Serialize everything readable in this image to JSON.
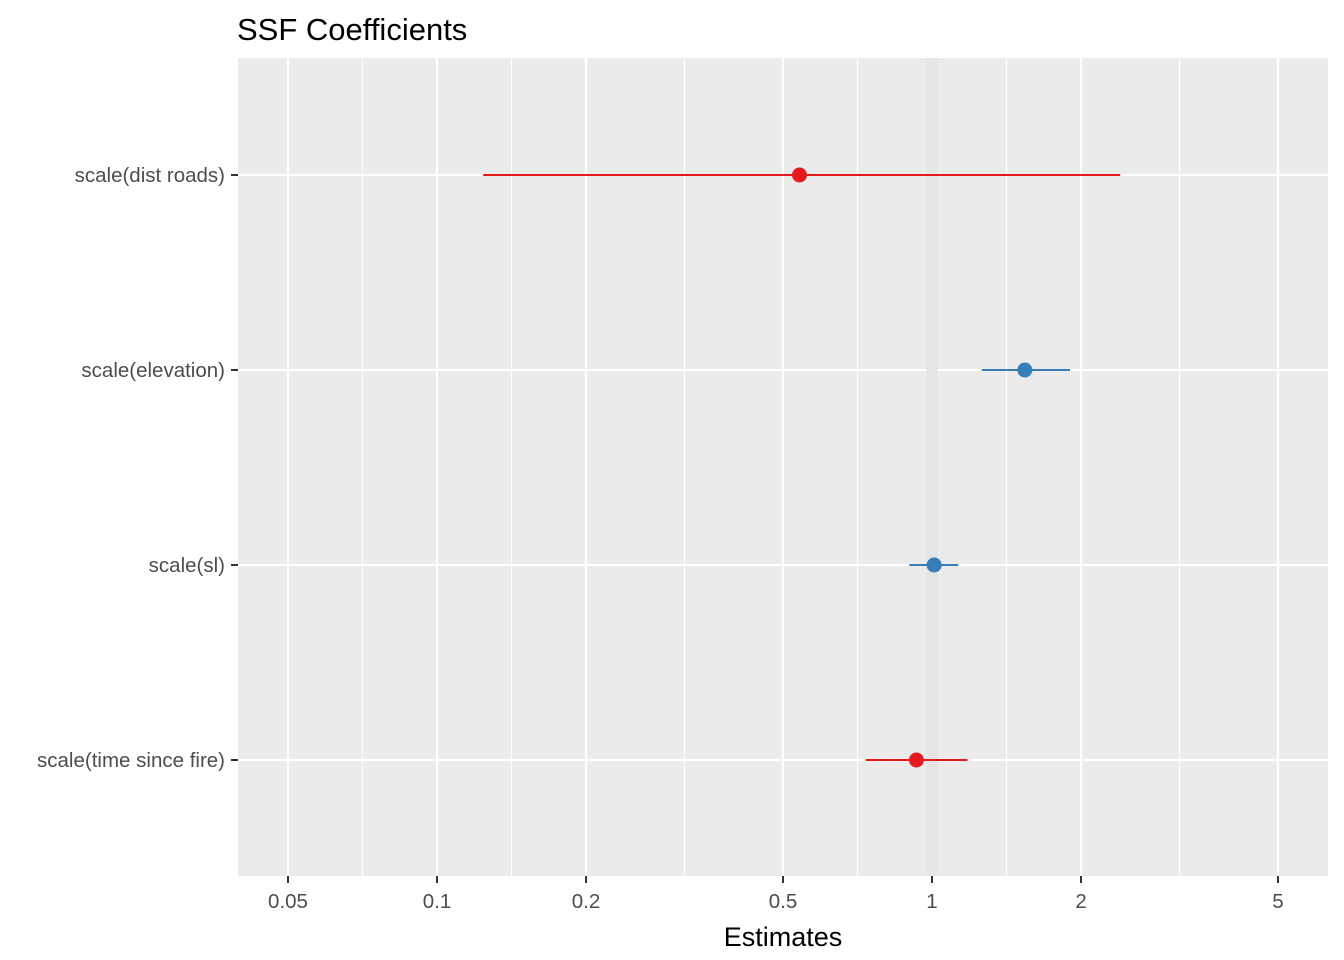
{
  "chart_data": {
    "type": "scatter",
    "title": "SSF Coefficients",
    "xlabel": "Estimates",
    "ylabel": "",
    "x_scale": "log10",
    "xlim": [
      0.04,
      6.2
    ],
    "x_ticks": [
      {
        "value": 0.05,
        "label": "0.05"
      },
      {
        "value": 0.1,
        "label": "0.1"
      },
      {
        "value": 0.2,
        "label": "0.2"
      },
      {
        "value": 0.5,
        "label": "0.5"
      },
      {
        "value": 1,
        "label": "1"
      },
      {
        "value": 2,
        "label": "2"
      },
      {
        "value": 5,
        "label": "5"
      }
    ],
    "reference_line": 1,
    "grid": true,
    "colors": {
      "positive": "#377EB8",
      "negative": "#E41A1C",
      "panel": "#EBEBEB",
      "grid": "#FFFFFF",
      "reference": "#E5E5E5"
    },
    "terms": [
      {
        "label": "scale(dist roads)",
        "estimate": 0.54,
        "conf_low": 0.124,
        "conf_high": 2.4,
        "direction": "negative"
      },
      {
        "label": "scale(elevation)",
        "estimate": 1.54,
        "conf_low": 1.26,
        "conf_high": 1.9,
        "direction": "positive"
      },
      {
        "label": "scale(sl)",
        "estimate": 1.01,
        "conf_low": 0.9,
        "conf_high": 1.13,
        "direction": "positive"
      },
      {
        "label": "scale(time since fire)",
        "estimate": 0.93,
        "conf_low": 0.735,
        "conf_high": 1.18,
        "direction": "negative"
      }
    ]
  }
}
